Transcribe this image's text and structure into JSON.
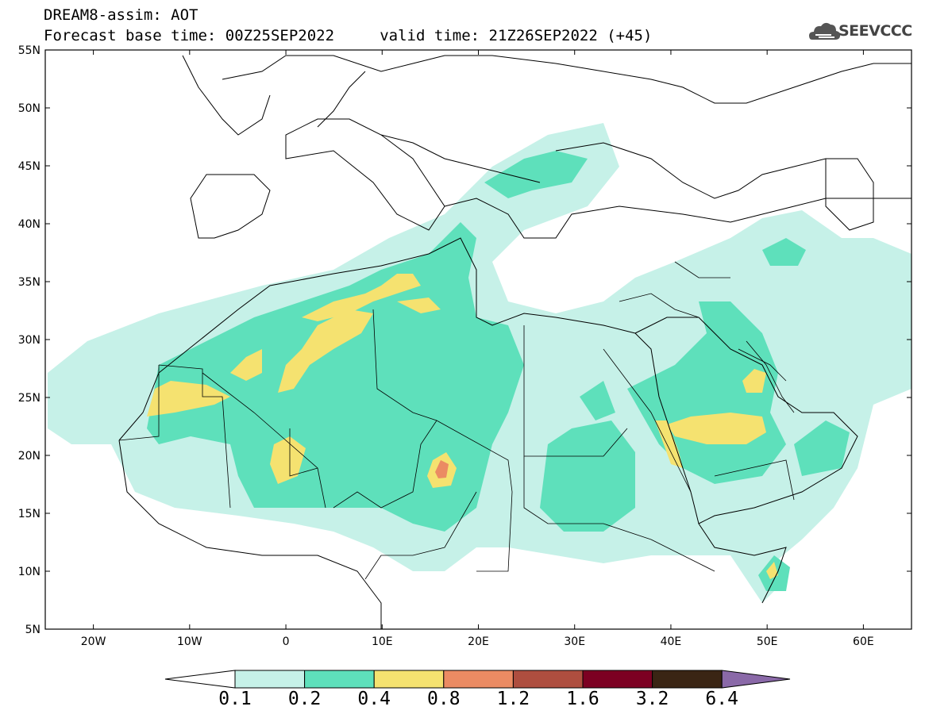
{
  "header": {
    "title": "DREAM8-assim: AOT",
    "subtitle": "Forecast base time: 00Z25SEP2022     valid time: 21Z26SEP2022 (+45)"
  },
  "logo": {
    "text": "SEEVCCC",
    "icon": "cloud-icon"
  },
  "map": {
    "lon_range": [
      -25,
      65
    ],
    "lat_range": [
      5,
      55
    ],
    "lon_ticks": [
      "20W",
      "10W",
      "0",
      "10E",
      "20E",
      "30E",
      "40E",
      "50E",
      "60E"
    ],
    "lat_ticks": [
      "5N",
      "10N",
      "15N",
      "20N",
      "25N",
      "30N",
      "35N",
      "40N",
      "45N",
      "50N",
      "55N"
    ]
  },
  "colorbar": {
    "colors": [
      "#ffffff",
      "#c6f1e8",
      "#5ee0bb",
      "#f5e270",
      "#eb8b63",
      "#ae4e3f",
      "#7c0022",
      "#3a2514",
      "#8a69a8"
    ],
    "labels": [
      "0.1",
      "0.2",
      "0.4",
      "0.8",
      "1.2",
      "1.6",
      "3.2",
      "6.4"
    ]
  }
}
